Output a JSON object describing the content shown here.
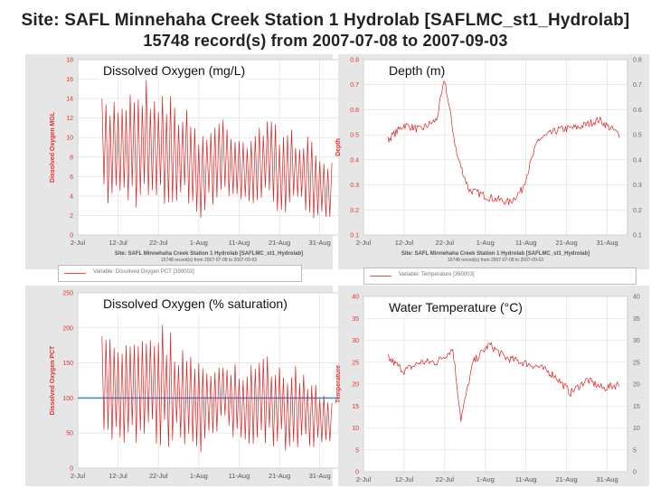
{
  "header": {
    "line1": "Site: SAFL Minnehaha Creek Station 1 Hydrolab [SAFLMC_st1_Hydrolab]",
    "line2": "15748 record(s) from 2007-07-08 to 2007-09-03"
  },
  "colors": {
    "series": "#dd2020",
    "reference": "#3b8fd6",
    "plot_bg": "#ffffff",
    "outer_bg": "#e6e6e6",
    "axis_text": "#e23030",
    "grid": "#dddddd"
  },
  "legends": {
    "do_pct": "Variable: Dissolved Oxygen PCT [390002]",
    "temp": "Variable: Temperature [390003]"
  },
  "chart_data": [
    {
      "id": "do_mgl",
      "type": "line",
      "title": "Dissolved Oxygen (mg/L)",
      "ylabel": "Dissolved Oxygen MGL",
      "ylim": [
        0,
        18
      ],
      "yticks": [
        "0",
        "2",
        "4",
        "6",
        "8",
        "10",
        "12",
        "14",
        "16",
        "18"
      ],
      "right_ticks": [
        "0",
        "2",
        "4",
        "6",
        "8",
        "10",
        "12",
        "14",
        "16",
        "18"
      ],
      "xlim": [
        "2007-07-02",
        "2007-09-05"
      ],
      "xticks": [
        "2-Jul",
        "12-Jul",
        "22-Jul",
        "1-Aug",
        "11-Aug",
        "21-Aug",
        "31-Aug"
      ],
      "subcaption": [
        "Site: SAFL Minnehaha Creek Station 1 Hydrolab [SAFLMC_st1_Hydrolab]",
        "15748 record(s) from 2007-07-08 to 2007-09-03"
      ],
      "grid": true,
      "oscillating": true,
      "series": [
        {
          "x": [
            "2007-07-08",
            "2007-07-13",
            "2007-07-18",
            "2007-07-23",
            "2007-07-28",
            "2007-08-02",
            "2007-08-07",
            "2007-08-12",
            "2007-08-17",
            "2007-08-22",
            "2007-08-27",
            "2007-09-01",
            "2007-09-03"
          ],
          "high": [
            14.0,
            15.0,
            16.5,
            15.5,
            13.5,
            11.0,
            12.5,
            10.5,
            12.0,
            11.5,
            10.5,
            8.5,
            8.0
          ],
          "low": [
            2.5,
            3.0,
            2.5,
            2.0,
            3.0,
            1.5,
            4.0,
            2.5,
            3.0,
            2.0,
            2.0,
            1.5,
            1.5
          ]
        }
      ]
    },
    {
      "id": "depth",
      "type": "line",
      "title": "Depth (m)",
      "ylabel": "Depth",
      "ylim": [
        0.1,
        0.8
      ],
      "yticks": [
        "0.1",
        "0.2",
        "0.3",
        "0.4",
        "0.5",
        "0.6",
        "0.7",
        "0.8"
      ],
      "right_ticks": [
        "0.1",
        "0.2",
        "0.3",
        "0.4",
        "0.5",
        "0.6",
        "0.7",
        "0.8"
      ],
      "xlim": [
        "2007-07-02",
        "2007-09-05"
      ],
      "xticks": [
        "2-Jul",
        "12-Jul",
        "22-Jul",
        "1-Aug",
        "11-Aug",
        "21-Aug",
        "31-Aug"
      ],
      "subcaption": [
        "Site: SAFL Minnehaha Creek Station 1 Hydrolab [SAFLMC_st1_Hydrolab]",
        "15748 record(s) from 2007-07-08 to 2007-09-03"
      ],
      "grid": true,
      "oscillating": false,
      "series": [
        {
          "x": [
            "2007-07-08",
            "2007-07-12",
            "2007-07-16",
            "2007-07-20",
            "2007-07-22",
            "2007-07-25",
            "2007-07-28",
            "2007-08-02",
            "2007-08-07",
            "2007-08-10",
            "2007-08-14",
            "2007-08-19",
            "2007-08-24",
            "2007-08-29",
            "2007-09-03"
          ],
          "y": [
            0.48,
            0.54,
            0.52,
            0.56,
            0.72,
            0.42,
            0.28,
            0.25,
            0.23,
            0.28,
            0.48,
            0.52,
            0.53,
            0.56,
            0.5
          ]
        }
      ]
    },
    {
      "id": "do_pct",
      "type": "line",
      "title": "Dissolved Oxygen (% saturation)",
      "ylabel": "Dissolved Oxygen PCT",
      "ylim": [
        0,
        250
      ],
      "yticks": [
        "0",
        "50",
        "100",
        "150",
        "200",
        "250"
      ],
      "right_ticks": [
        "0",
        "50",
        "100",
        "150",
        "200",
        "250"
      ],
      "xlim": [
        "2007-07-02",
        "2007-09-05"
      ],
      "xticks": [
        "2-Jul",
        "12-Jul",
        "22-Jul",
        "1-Aug",
        "11-Aug",
        "21-Aug",
        "31-Aug"
      ],
      "grid": true,
      "oscillating": true,
      "reference_line": 100,
      "series": [
        {
          "x": [
            "2007-07-08",
            "2007-07-13",
            "2007-07-18",
            "2007-07-23",
            "2007-07-28",
            "2007-08-02",
            "2007-08-07",
            "2007-08-12",
            "2007-08-17",
            "2007-08-22",
            "2007-08-27",
            "2007-09-01",
            "2007-09-03"
          ],
          "high": [
            190,
            200,
            220,
            210,
            175,
            145,
            165,
            140,
            160,
            155,
            140,
            115,
            110
          ],
          "low": [
            30,
            35,
            30,
            25,
            35,
            20,
            50,
            30,
            35,
            25,
            25,
            20,
            20
          ]
        }
      ]
    },
    {
      "id": "temp",
      "type": "line",
      "title": "Water Temperature (°C)",
      "ylabel": "Temperature",
      "ylim": [
        0,
        40
      ],
      "yticks": [
        "0",
        "5",
        "10",
        "15",
        "20",
        "25",
        "30",
        "35",
        "40"
      ],
      "right_ticks": [
        "0",
        "5",
        "10",
        "15",
        "20",
        "25",
        "30",
        "35",
        "40"
      ],
      "xlim": [
        "2007-07-02",
        "2007-09-05"
      ],
      "xticks": [
        "2-Jul",
        "12-Jul",
        "22-Jul",
        "1-Aug",
        "11-Aug",
        "21-Aug",
        "31-Aug"
      ],
      "grid": true,
      "oscillating": false,
      "series": [
        {
          "x": [
            "2007-07-08",
            "2007-07-12",
            "2007-07-16",
            "2007-07-20",
            "2007-07-24",
            "2007-07-26",
            "2007-07-29",
            "2007-08-02",
            "2007-08-06",
            "2007-08-10",
            "2007-08-14",
            "2007-08-18",
            "2007-08-22",
            "2007-08-26",
            "2007-08-30",
            "2007-09-03"
          ],
          "y": [
            26,
            23,
            25,
            25,
            28,
            12,
            25,
            29,
            26,
            25,
            24,
            22,
            18,
            21,
            19,
            20
          ]
        }
      ]
    }
  ]
}
